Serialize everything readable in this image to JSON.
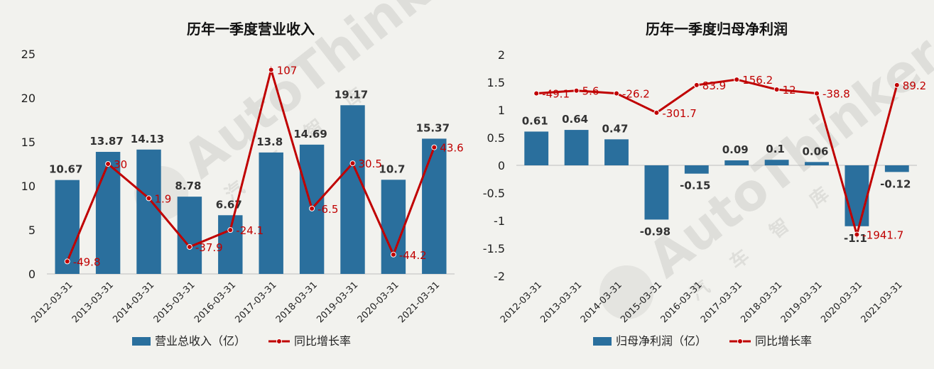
{
  "colors": {
    "bar": "#2a6f9d",
    "line": "#c00000",
    "background": "#f2f2ee"
  },
  "watermark": {
    "text": "AutoThinker",
    "subtitle": "汽 车 智 库"
  },
  "chart_data": [
    {
      "type": "bar",
      "title": "历年一季度营业收入",
      "categories": [
        "2012-03-31",
        "2013-03-31",
        "2014-03-31",
        "2015-03-31",
        "2016-03-31",
        "2017-03-31",
        "2018-03-31",
        "2019-03-31",
        "2020-03-31",
        "2021-03-31"
      ],
      "y_ticks": [
        "25",
        "20",
        "15",
        "10",
        "5",
        "0"
      ],
      "ylim": [
        0,
        25
      ],
      "series": [
        {
          "name": "营业总收入（亿）",
          "type": "bar",
          "values": [
            10.67,
            13.87,
            14.13,
            8.78,
            6.67,
            13.8,
            14.69,
            19.17,
            10.7,
            15.37
          ],
          "labels": [
            "10.67",
            "13.87",
            "14.13",
            "8.78",
            "6.67",
            "13.8",
            "14.69",
            "19.17",
            "10.7",
            "15.37"
          ]
        },
        {
          "name": "同比增长率",
          "type": "line",
          "values": [
            -49.8,
            30,
            1.9,
            -37.9,
            -24.1,
            107,
            -6.5,
            30.5,
            -44.2,
            43.6
          ],
          "labels": [
            "-49.8",
            "30",
            "1.9",
            "-37.9",
            "-24.1",
            "107",
            "-6.5",
            "30.5",
            "-44.2",
            "43.6"
          ],
          "line_range": [
            -60,
            120
          ]
        }
      ],
      "legend": "bottom"
    },
    {
      "type": "bar",
      "title": "历年一季度归母净利润",
      "categories": [
        "2012-03-31",
        "2013-03-31",
        "2014-03-31",
        "2015-03-31",
        "2016-03-31",
        "2017-03-31",
        "2018-03-31",
        "2019-03-31",
        "2020-03-31",
        "2021-03-31"
      ],
      "y_ticks": [
        "2",
        "1.5",
        "1",
        "0.5",
        "0",
        "-0.5",
        "-1",
        "-1.5",
        "-2"
      ],
      "ylim": [
        -2,
        2
      ],
      "series": [
        {
          "name": "归母净利润（亿）",
          "type": "bar",
          "values": [
            0.61,
            0.64,
            0.47,
            -0.98,
            -0.15,
            0.09,
            0.1,
            0.06,
            -1.1,
            -0.12
          ],
          "labels": [
            "0.61",
            "0.64",
            "0.47",
            "-0.98",
            "-0.15",
            "0.09",
            "0.1",
            "0.06",
            "-1.1",
            "-0.12"
          ]
        },
        {
          "name": "同比增长率",
          "type": "line",
          "values": [
            -49.1,
            5.6,
            -26.2,
            -301.7,
            83.9,
            156.2,
            12,
            -38.8,
            -1941.7,
            89.2
          ],
          "labels": [
            "-49.1",
            "5.6",
            "-26.2",
            "-301.7",
            "83.9",
            "156.2",
            "12",
            "-38.8",
            "-1941.7",
            "89.2"
          ],
          "line_plot_levels": [
            1.3,
            1.35,
            1.3,
            0.95,
            1.45,
            1.55,
            1.37,
            1.3,
            -1.25,
            1.45
          ]
        }
      ],
      "legend": "bottom"
    }
  ]
}
